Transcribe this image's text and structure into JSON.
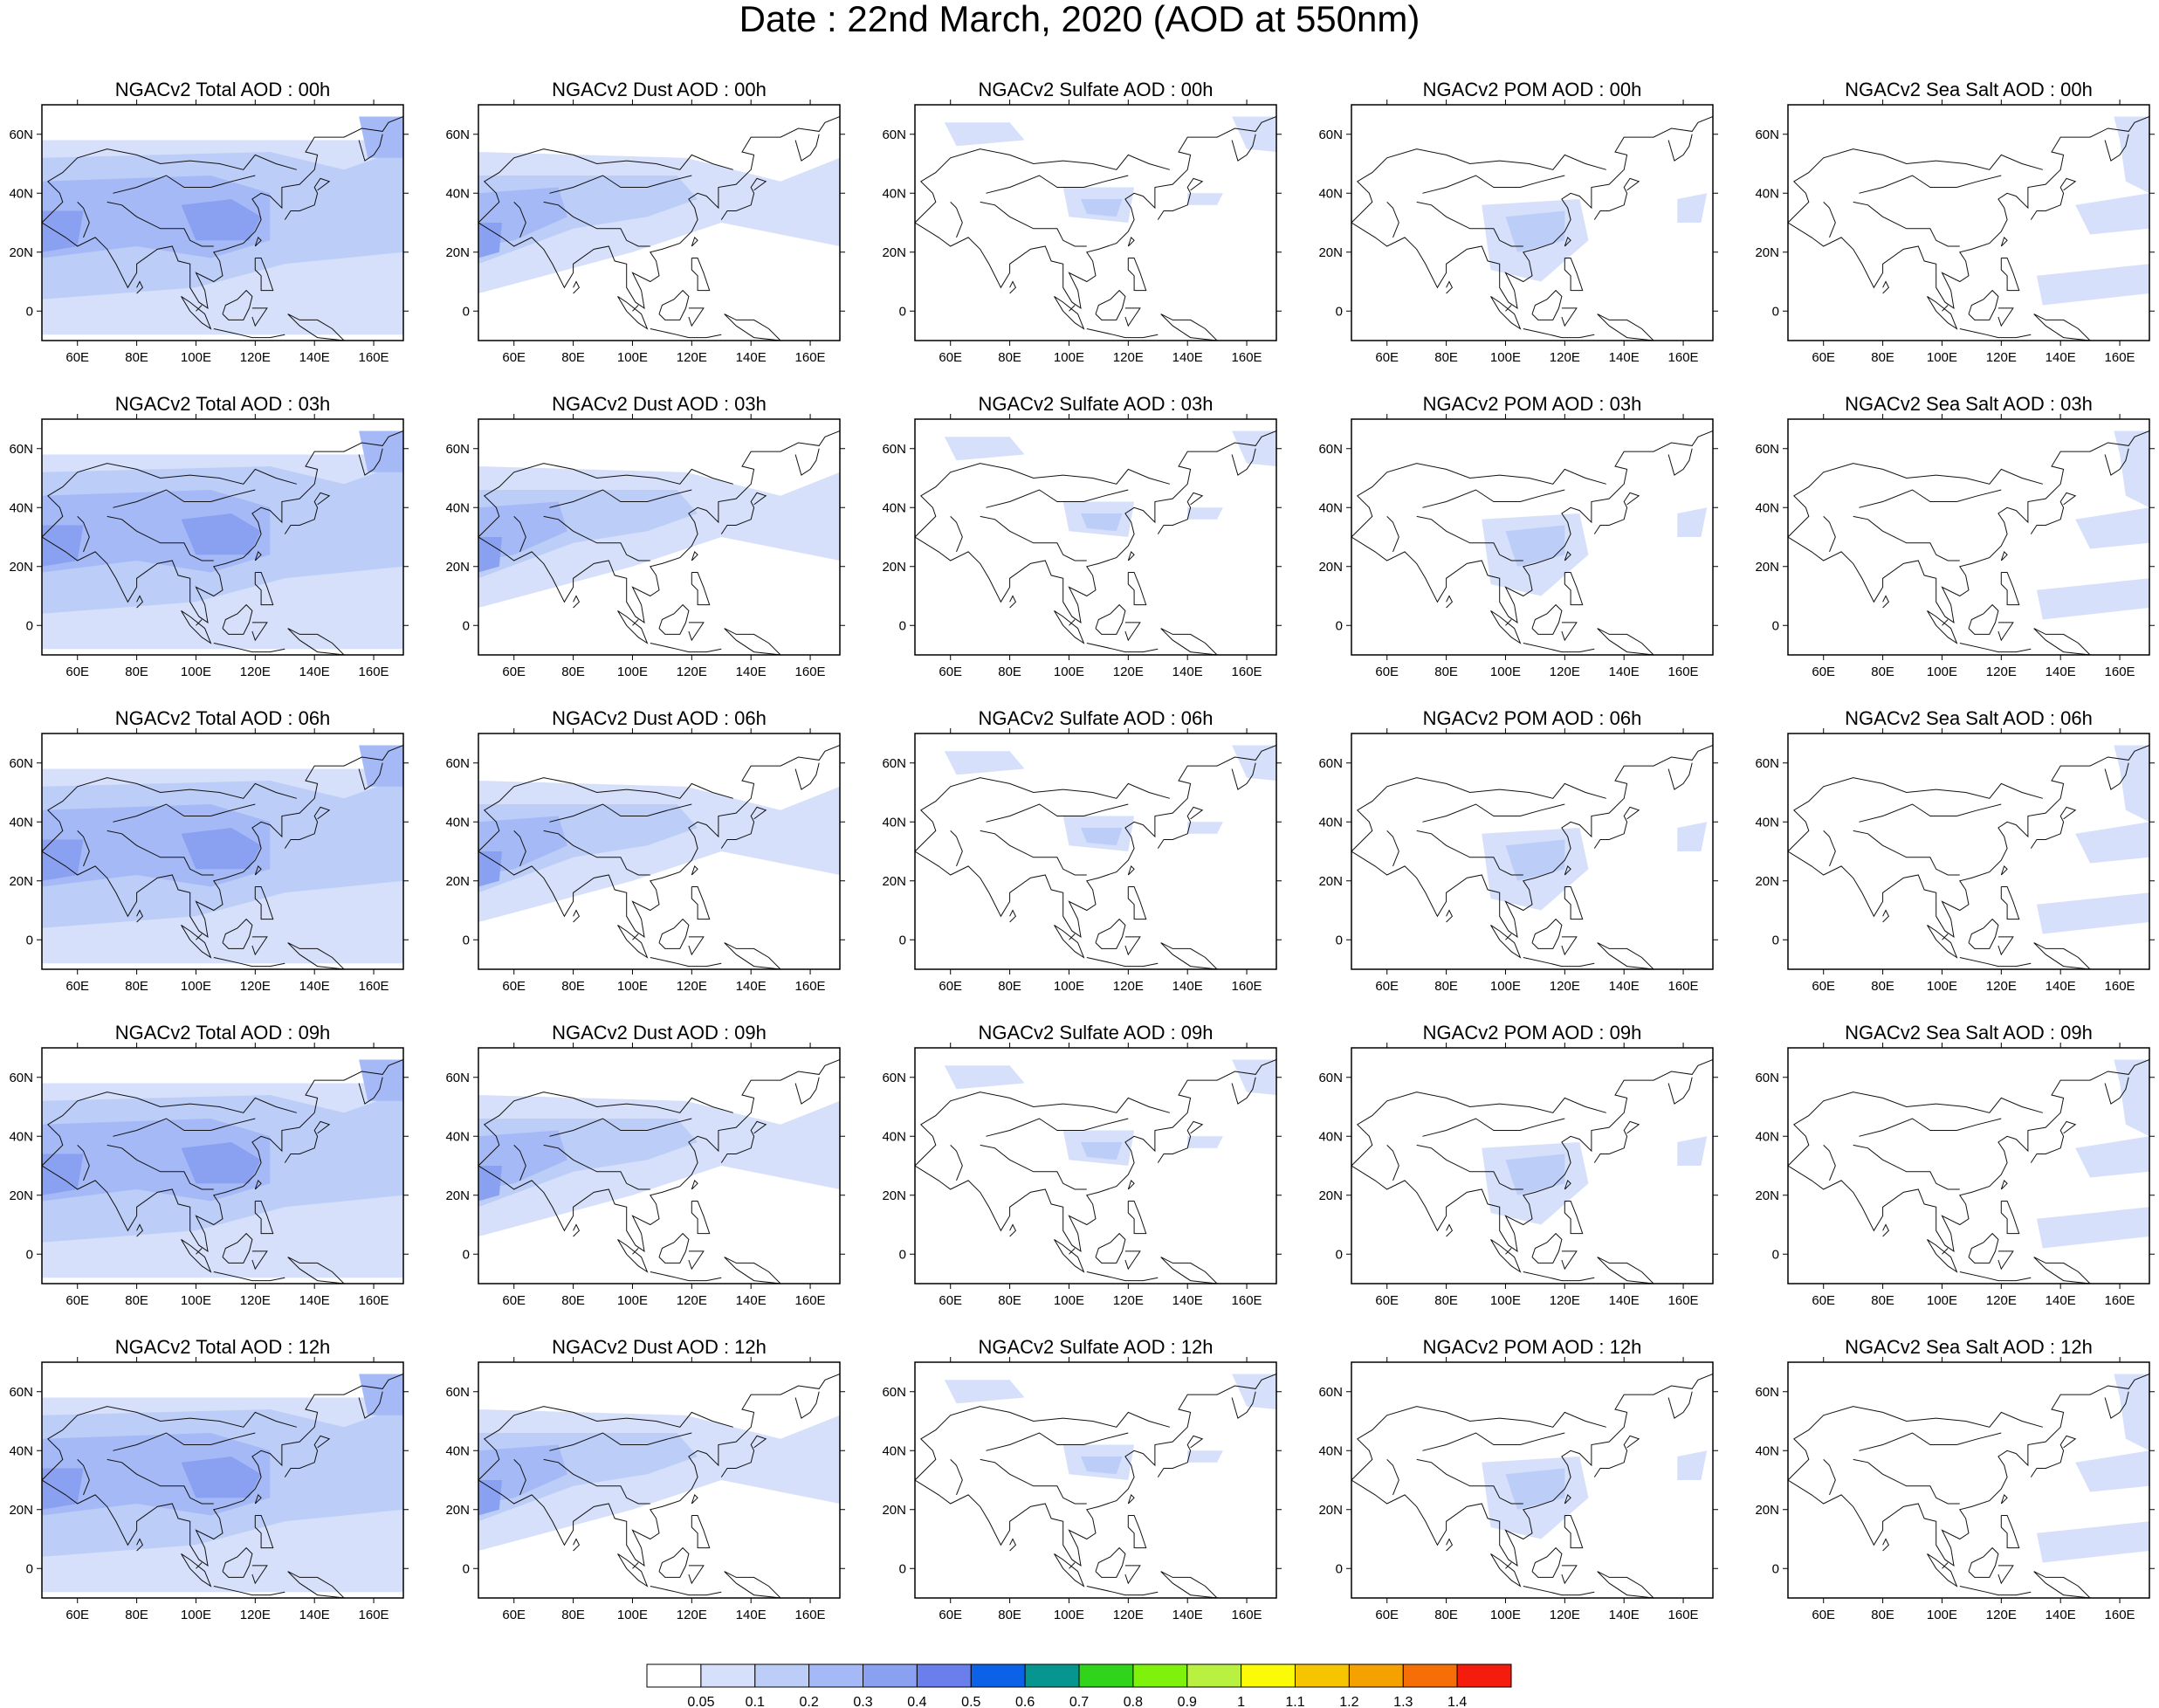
{
  "title": "Date : 22nd March, 2020 (AOD at 550nm)",
  "map": {
    "lon_range": [
      48,
      170
    ],
    "lat_range": [
      -10,
      70
    ],
    "lat_ticks": [
      0,
      20,
      40,
      60
    ],
    "lat_tick_labels": [
      "0",
      "20N",
      "40N",
      "60N"
    ],
    "lon_ticks": [
      60,
      80,
      100,
      120,
      140,
      160
    ],
    "lon_tick_labels": [
      "60E",
      "80E",
      "100E",
      "120E",
      "140E",
      "160E"
    ]
  },
  "panels": [
    {
      "title": "NGACv2 Total AOD : 00h",
      "species": "total",
      "hour": "00h"
    },
    {
      "title": "NGACv2 Dust AOD : 00h",
      "species": "dust",
      "hour": "00h"
    },
    {
      "title": "NGACv2 Sulfate AOD : 00h",
      "species": "sulfate",
      "hour": "00h"
    },
    {
      "title": "NGACv2 POM AOD : 00h",
      "species": "pom",
      "hour": "00h"
    },
    {
      "title": "NGACv2 Sea Salt AOD : 00h",
      "species": "seasalt",
      "hour": "00h"
    },
    {
      "title": "NGACv2 Total AOD : 03h",
      "species": "total",
      "hour": "03h"
    },
    {
      "title": "NGACv2 Dust AOD : 03h",
      "species": "dust",
      "hour": "03h"
    },
    {
      "title": "NGACv2 Sulfate AOD : 03h",
      "species": "sulfate",
      "hour": "03h"
    },
    {
      "title": "NGACv2 POM AOD : 03h",
      "species": "pom",
      "hour": "03h"
    },
    {
      "title": "NGACv2 Sea Salt AOD : 03h",
      "species": "seasalt",
      "hour": "03h"
    },
    {
      "title": "NGACv2 Total AOD : 06h",
      "species": "total",
      "hour": "06h"
    },
    {
      "title": "NGACv2 Dust AOD : 06h",
      "species": "dust",
      "hour": "06h"
    },
    {
      "title": "NGACv2 Sulfate AOD : 06h",
      "species": "sulfate",
      "hour": "06h"
    },
    {
      "title": "NGACv2 POM AOD : 06h",
      "species": "pom",
      "hour": "06h"
    },
    {
      "title": "NGACv2 Sea Salt AOD : 06h",
      "species": "seasalt",
      "hour": "06h"
    },
    {
      "title": "NGACv2 Total AOD : 09h",
      "species": "total",
      "hour": "09h"
    },
    {
      "title": "NGACv2 Dust AOD : 09h",
      "species": "dust",
      "hour": "09h"
    },
    {
      "title": "NGACv2 Sulfate AOD : 09h",
      "species": "sulfate",
      "hour": "09h"
    },
    {
      "title": "NGACv2 POM AOD : 09h",
      "species": "pom",
      "hour": "09h"
    },
    {
      "title": "NGACv2 Sea Salt  AOD : 09h",
      "species": "seasalt",
      "hour": "09h"
    },
    {
      "title": "NGACv2 Total AOD  : 12h",
      "species": "total",
      "hour": "12h"
    },
    {
      "title": "NGACv2 Dust AOD : 12h",
      "species": "dust",
      "hour": "12h"
    },
    {
      "title": "NGACv2 Sulfate AOD : 12h",
      "species": "sulfate",
      "hour": "12h"
    },
    {
      "title": "NGACv2 POM  AOD : 12h",
      "species": "pom",
      "hour": "12h"
    },
    {
      "title": "NGACv2 Sea Salt  AOD : 12h",
      "species": "seasalt",
      "hour": "12h"
    }
  ],
  "colorbar": {
    "labels": [
      "0.05",
      "0.1",
      "0.2",
      "0.3",
      "0.4",
      "0.5",
      "0.6",
      "0.7",
      "0.8",
      "0.9",
      "1",
      "1.1",
      "1.2",
      "1.3",
      "1.4"
    ],
    "colors": [
      "#ffffff",
      "#d6e0fb",
      "#bccdf8",
      "#a4b9f5",
      "#8aa1f1",
      "#6a7eec",
      "#0b62e8",
      "#06958f",
      "#2fd41b",
      "#7ef20a",
      "#b9f140",
      "#fbfb07",
      "#f7c400",
      "#f5a100",
      "#f56f06",
      "#f51b0d"
    ]
  }
}
